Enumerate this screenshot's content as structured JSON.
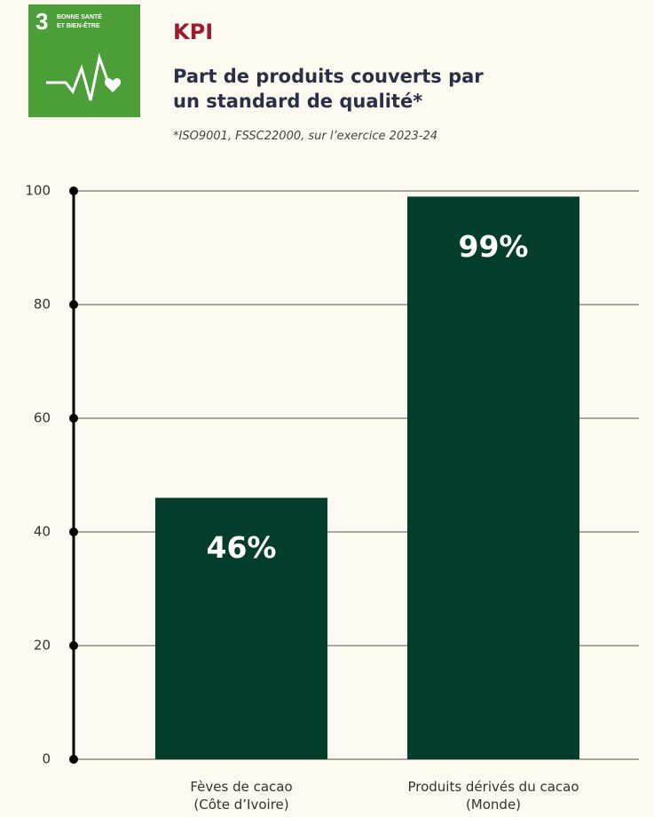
{
  "badge": {
    "number": "3",
    "label": "BONNE SANTÉ\nET BIEN-ÊTRE"
  },
  "chart_data": {
    "type": "bar",
    "kicker": "KPI",
    "title": "Part de produits couverts par\nun standard de qualité*",
    "subtitle": "*ISO9001, FSSC22000, sur l’exercice 2023-24",
    "categories": [
      "Fèves de cacao\n(Côte d’Ivoire)",
      "Produits dérivés du cacao\n(Monde)"
    ],
    "values": [
      46,
      99
    ],
    "value_labels": [
      "46%",
      "99%"
    ],
    "color": "#043d2c",
    "ylim": [
      0,
      100
    ],
    "yticks": [
      0,
      20,
      40,
      60,
      80,
      100
    ],
    "grid": true
  }
}
